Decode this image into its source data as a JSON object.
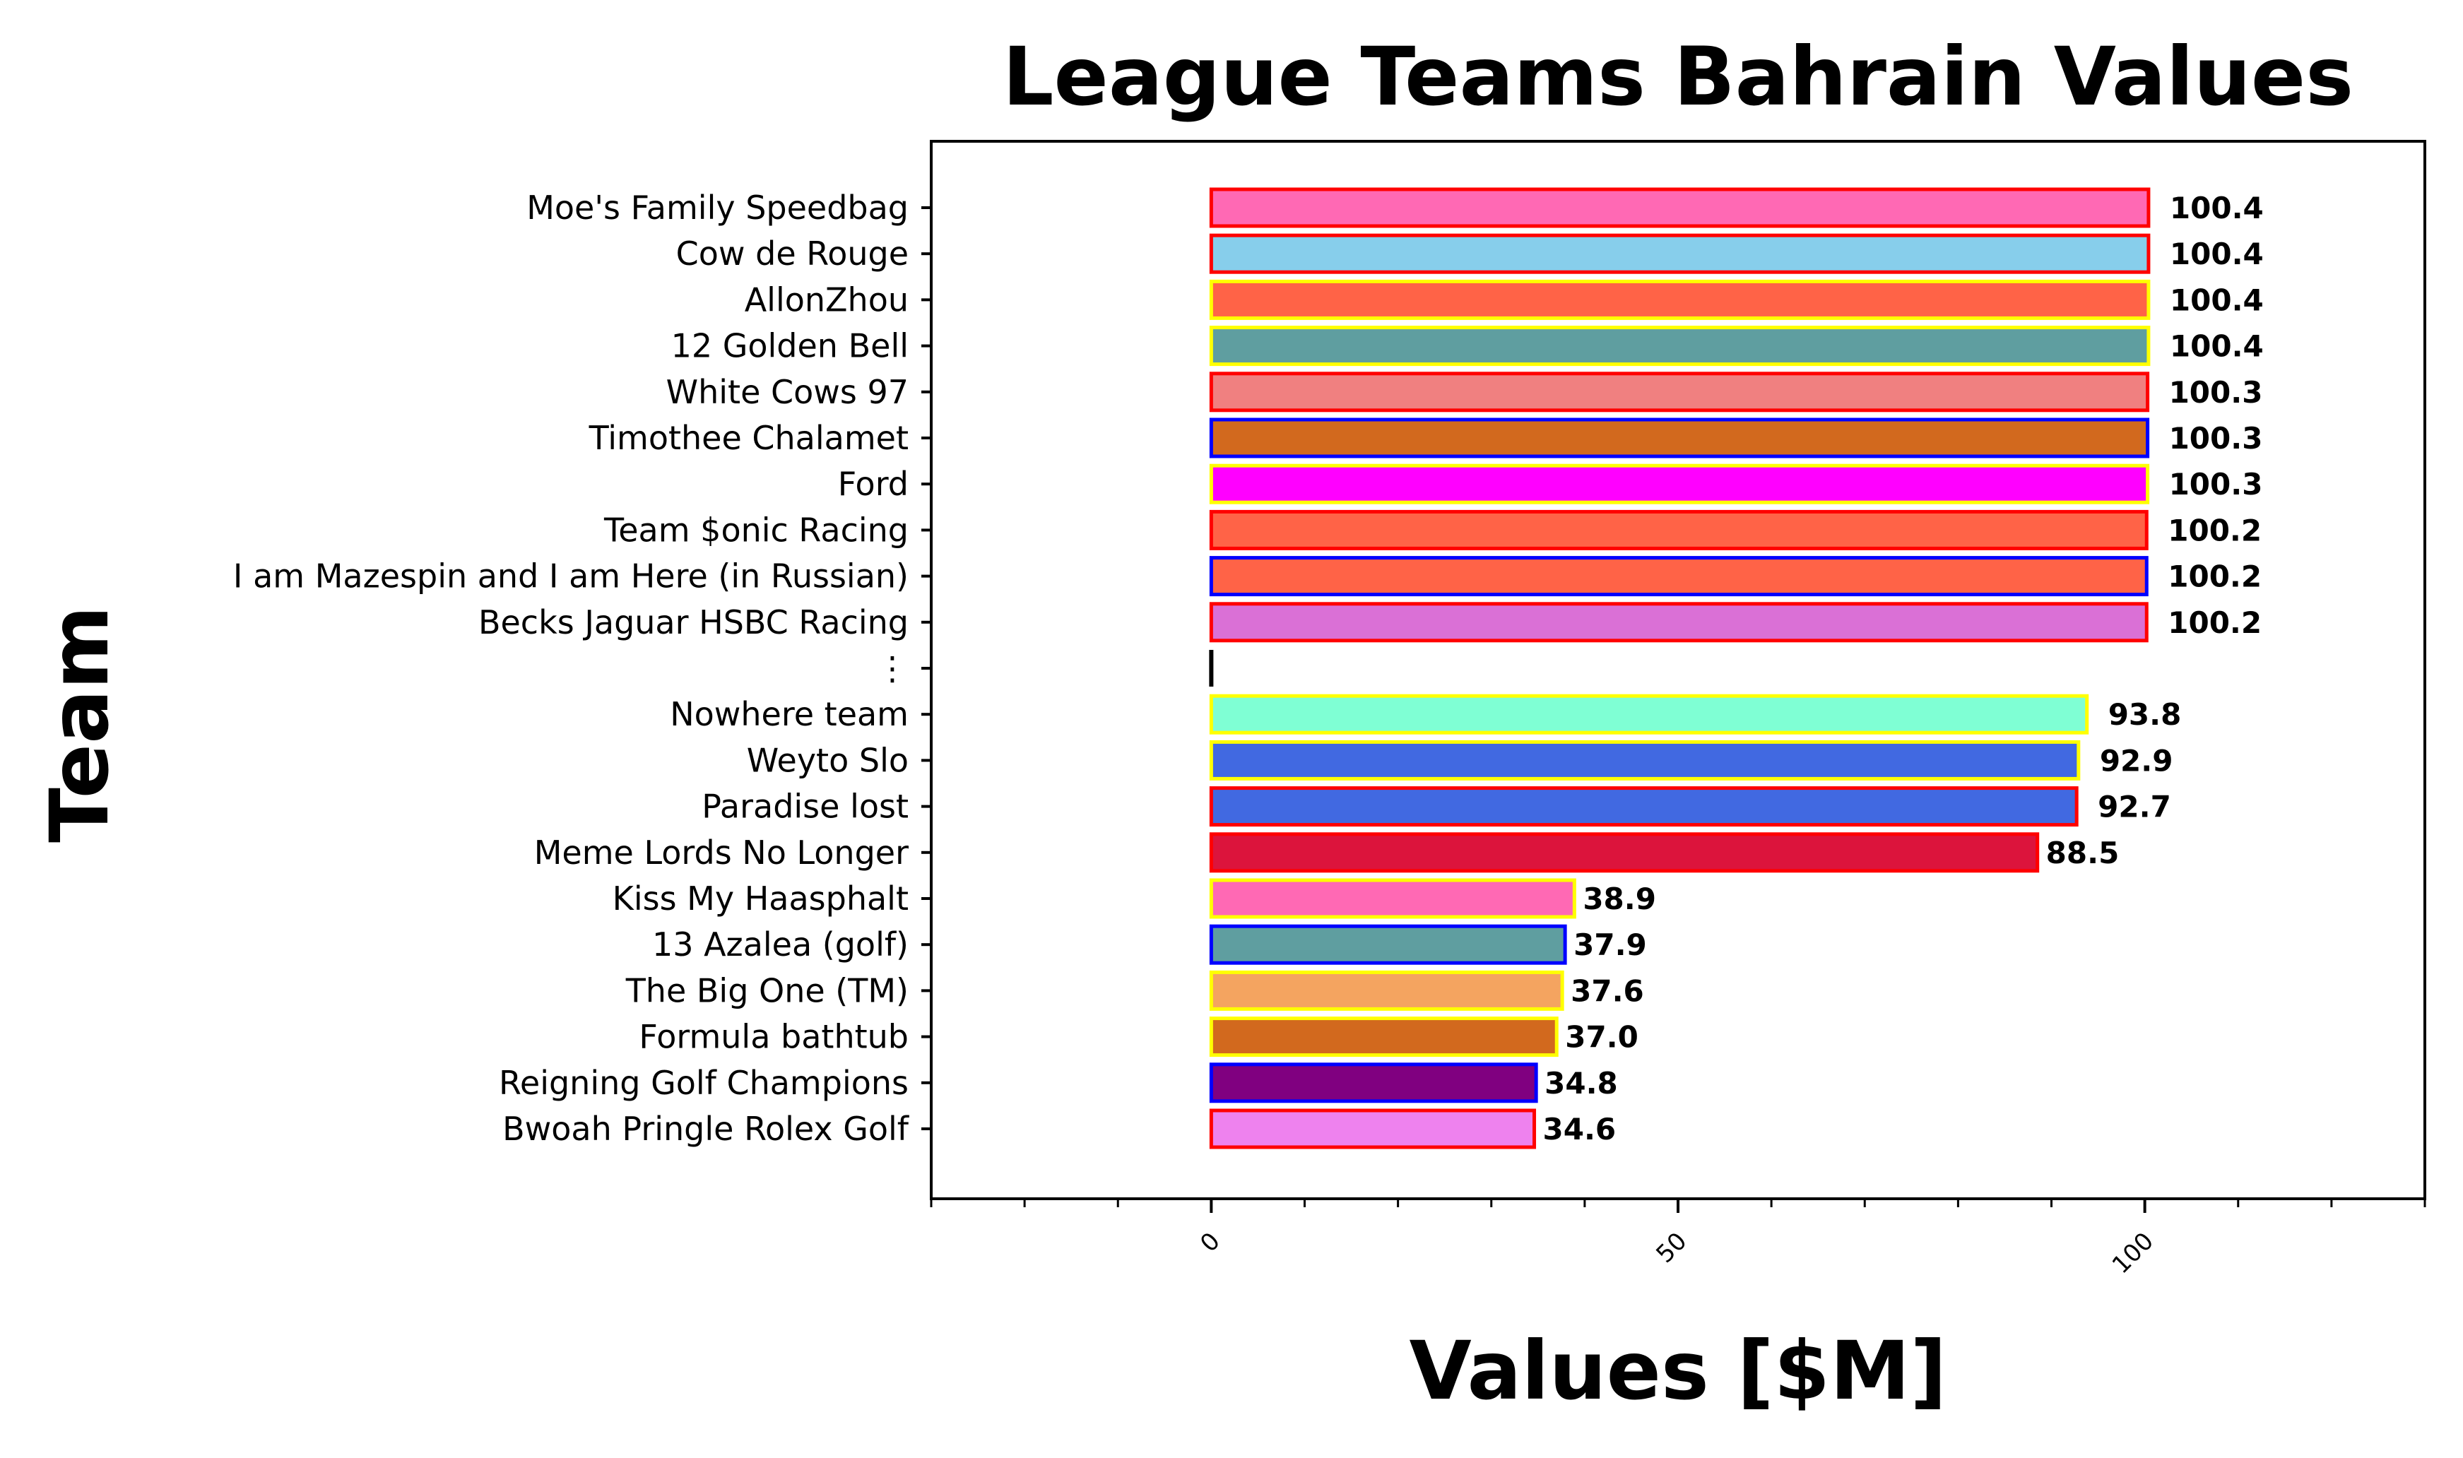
{
  "chart_data": {
    "type": "bar",
    "orientation": "horizontal",
    "title": "League Teams Bahrain Values",
    "xlabel": "Values [$M]",
    "ylabel": "Team",
    "xlim": [
      -30,
      130
    ],
    "xticks": [
      0,
      50,
      100
    ],
    "xtick_labels": [
      "0",
      "50",
      "100"
    ],
    "x_minor_step": 10,
    "grid": false,
    "categories": [
      "Moe's Family Speedbag",
      "Cow de Rouge",
      "AllonZhou",
      "12 Golden Bell",
      "White Cows 97",
      "Timothee Chalamet",
      "Ford",
      "Team $onic Racing",
      "I am Mazespin and I am Here (in Russian)",
      "Becks Jaguar HSBC Racing",
      "⋮",
      "Nowhere team",
      "Weyto Slo",
      "Paradise lost",
      "Meme Lords No Longer",
      "Kiss My Haasphalt",
      "13 Azalea (golf)",
      "The Big One (TM)",
      "Formula bathtub",
      "Reigning Golf Champions",
      "Bwoah Pringle Rolex Golf"
    ],
    "values": [
      100.4,
      100.4,
      100.4,
      100.4,
      100.3,
      100.3,
      100.3,
      100.2,
      100.2,
      100.2,
      0,
      93.8,
      92.9,
      92.7,
      88.5,
      38.9,
      37.9,
      37.6,
      37.0,
      34.8,
      34.6
    ],
    "value_labels": [
      "100.4",
      "100.4",
      "100.4",
      "100.4",
      "100.3",
      "100.3",
      "100.3",
      "100.2",
      "100.2",
      "100.2",
      "",
      "93.8",
      "92.9",
      "92.7",
      "88.5",
      "38.9",
      "37.9",
      "37.6",
      "37.0",
      "34.8",
      "34.6"
    ],
    "fill_colors": [
      "#ff69b4",
      "#87ceeb",
      "#ff6347",
      "#5f9ea0",
      "#f08080",
      "#d2691e",
      "#ff00ff",
      "#ff6347",
      "#ff6347",
      "#da70d6",
      "#000000",
      "#7fffd4",
      "#4169e1",
      "#4169e1",
      "#dc143c",
      "#ff69b4",
      "#5f9ea0",
      "#f4a460",
      "#d2691e",
      "#800080",
      "#ee82ee"
    ],
    "edge_colors": [
      "#ff0000",
      "#ff0000",
      "#ffff00",
      "#ffff00",
      "#ff0000",
      "#0000ff",
      "#ffff00",
      "#ff0000",
      "#0000ff",
      "#ff0000",
      "#000000",
      "#ffff00",
      "#ffff00",
      "#ff0000",
      "#ff0000",
      "#ffff00",
      "#0000ff",
      "#ffff00",
      "#ffff00",
      "#0000ff",
      "#ff0000"
    ]
  }
}
